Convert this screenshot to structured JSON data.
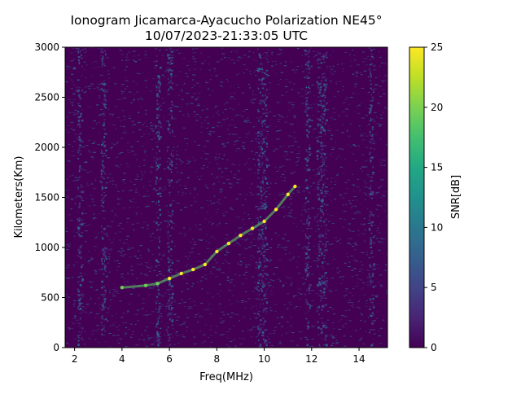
{
  "chart_data": {
    "type": "heatmap",
    "title_line1": "Ionogram Jicamarca-Ayacucho Polarization NE45°",
    "title_line2": "10/07/2023-21:33:05 UTC",
    "xlabel": "Freq(MHz)",
    "ylabel": "Kilometers(Km)",
    "xlim": [
      1.6,
      15.2
    ],
    "ylim": [
      0,
      3000
    ],
    "xticks": [
      2,
      4,
      6,
      8,
      10,
      12,
      14
    ],
    "yticks": [
      0,
      500,
      1000,
      1500,
      2000,
      2500,
      3000
    ],
    "colorbar": {
      "label": "SNR[dB]",
      "range": [
        0,
        25
      ],
      "ticks": [
        0,
        5,
        10,
        15,
        20,
        25
      ],
      "colormap": "viridis"
    },
    "trace": [
      {
        "x": 4.0,
        "y": 600
      },
      {
        "x": 5.0,
        "y": 620
      },
      {
        "x": 5.5,
        "y": 640
      },
      {
        "x": 6.0,
        "y": 690
      },
      {
        "x": 6.5,
        "y": 740
      },
      {
        "x": 7.0,
        "y": 780
      },
      {
        "x": 7.5,
        "y": 830
      },
      {
        "x": 8.0,
        "y": 960
      },
      {
        "x": 8.5,
        "y": 1040
      },
      {
        "x": 9.0,
        "y": 1120
      },
      {
        "x": 9.5,
        "y": 1190
      },
      {
        "x": 10.0,
        "y": 1260
      },
      {
        "x": 10.5,
        "y": 1380
      },
      {
        "x": 11.0,
        "y": 1530
      },
      {
        "x": 11.3,
        "y": 1610
      }
    ]
  }
}
